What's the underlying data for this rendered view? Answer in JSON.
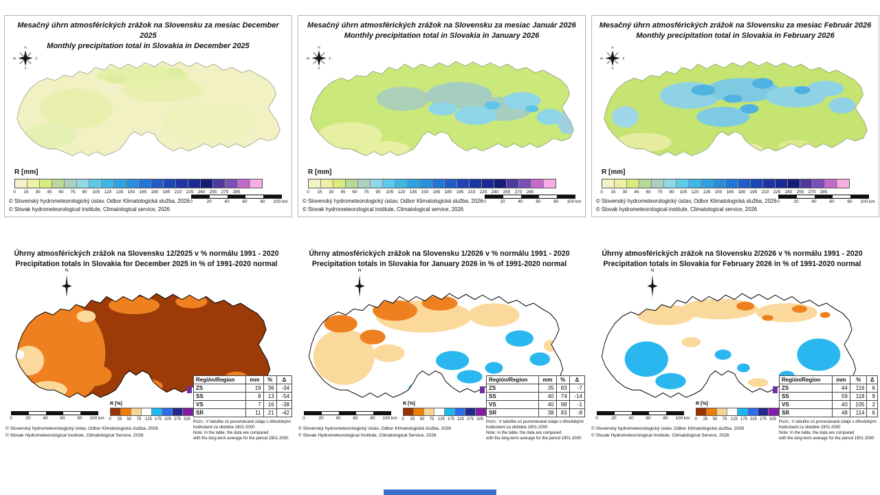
{
  "top_panels": [
    {
      "title_sk": "Mesačný úhrn atmosférických zrážok na Slovensku za mesiac December 2025",
      "title_en": "Monthly precipitation total in Slovakia in December 2025"
    },
    {
      "title_sk": "Mesačný úhrn atmosférických zrážok na Slovensku za mesiac Január 2026",
      "title_en": "Monthly precipitation total in Slovakia in January 2026"
    },
    {
      "title_sk": "Mesačný úhrn atmosférických zrážok na Slovensku za mesiac Február 2026",
      "title_en": "Monthly precipitation total in Slovakia in February 2026"
    }
  ],
  "top_legend": {
    "label": "R [mm]",
    "ticks": [
      "0",
      "15",
      "30",
      "45",
      "60",
      "75",
      "90",
      "105",
      "120",
      "135",
      "150",
      "165",
      "180",
      "195",
      "210",
      "225",
      "240",
      "255",
      "270",
      "285"
    ],
    "colors": [
      "#f2f2c6",
      "#eef0a6",
      "#d9ec7e",
      "#b8d89a",
      "#a9cfc0",
      "#8fd8e6",
      "#5fc9e8",
      "#3fb6e6",
      "#2fa3e2",
      "#2a8ede",
      "#2376d6",
      "#1f5cc8",
      "#1c46b6",
      "#1b35a4",
      "#192a92",
      "#151c74",
      "#4c3a9e",
      "#7a4fb4",
      "#c468cc",
      "#f6aee4"
    ]
  },
  "top_copyright": [
    "© Slovenský hydrometeorologický ústav, Odbor Klimatologická služba, 2026",
    "© Slovak hydrometeorological institute, Climatological service, 2026"
  ],
  "scalebar": {
    "labels": [
      "0",
      "20",
      "40",
      "60",
      "80",
      "100 km"
    ]
  },
  "bottom_panels": [
    {
      "title_sk": "Úhrny atmosférických zrážok na Slovensku 12/2025 v % normálu 1991 - 2020",
      "title_en": "Precipitation totals in Slovakia for December 2025 in % of 1991-2020 normal",
      "table": {
        "headers": [
          "Región/Region",
          "mm",
          "%",
          "Δ"
        ],
        "rows": [
          [
            "ZS",
            "19",
            "36",
            "-34"
          ],
          [
            "SS",
            "8",
            "13",
            "-54"
          ],
          [
            "VS",
            "7",
            "16",
            "-38"
          ],
          [
            "SR",
            "11",
            "21",
            "-42"
          ]
        ]
      }
    },
    {
      "title_sk": "Úhrny atmosférických zrážok na Slovensku 1/2026 v % normálu 1991 - 2020",
      "title_en": "Precipitation totals in Slovakia for January 2026 in % of 1991-2020 normal",
      "table": {
        "headers": [
          "Región/Region",
          "mm",
          "%",
          "Δ"
        ],
        "rows": [
          [
            "ZS",
            "35",
            "83",
            "-7"
          ],
          [
            "SS",
            "40",
            "74",
            "-14"
          ],
          [
            "VS",
            "40",
            "98",
            "-1"
          ],
          [
            "SR",
            "38",
            "83",
            "-8"
          ]
        ]
      }
    },
    {
      "title_sk": "Úhrny atmosférických zrážok na Slovensku 2/2026 v % normálu 1991 - 2020",
      "title_en": "Precipitation totals in Slovakia for February 2026 in % of 1991-2020 normal",
      "table": {
        "headers": [
          "Región/Region",
          "mm",
          "%",
          "Δ"
        ],
        "rows": [
          [
            "ZS",
            "44",
            "116",
            "6"
          ],
          [
            "SS",
            "59",
            "118",
            "9"
          ],
          [
            "VS",
            "40",
            "105",
            "2"
          ],
          [
            "SR",
            "48",
            "114",
            "6"
          ]
        ]
      }
    }
  ],
  "bottom_legend": {
    "label": "R [%]",
    "ticks": [
      "0",
      "25",
      "50",
      "75",
      "125",
      "175",
      "225",
      "275",
      "325"
    ],
    "colors": [
      "#993300",
      "#f07d00",
      "#f8d493",
      "#ffffff",
      "#1cb8f2",
      "#2f6df0",
      "#1f2a8c",
      "#8519a8"
    ]
  },
  "bottom_copyright": [
    "© Slovenský hydrometeorologický ústav, Odbor Klimatologická služba, 2026",
    "© Slovak Hydrometeorological Institute, Climatological Service, 2026"
  ],
  "note_lines": [
    "Pozn.: V tabuľke sú porovnávané údaje s dlhodobými",
    "hodnotami za obdobie 1901-2000",
    "Note: In the table, the data are compared",
    "with the long-term average for the period 1901-2000"
  ],
  "compass": {
    "n": "N",
    "e": "E",
    "s": "S",
    "w": "W"
  }
}
